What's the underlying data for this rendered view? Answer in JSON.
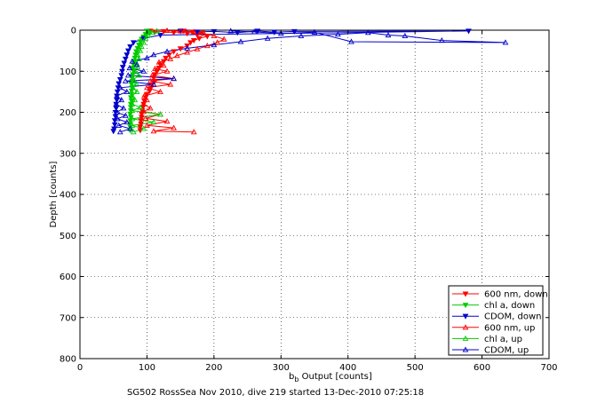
{
  "chart_data": {
    "type": "scatter",
    "xlabel_main": "b",
    "xlabel_sub": "b",
    "xlabel_rest": " Output [counts]",
    "ylabel": "Depth [counts]",
    "caption": "SG502 RossSea Nov 2010, dive 219 started 13-Dec-2010 07:25:18",
    "xlim": [
      0,
      700
    ],
    "ylim": [
      800,
      0
    ],
    "x_ticks": [
      0,
      100,
      200,
      300,
      400,
      500,
      600,
      700
    ],
    "y_ticks": [
      0,
      100,
      200,
      300,
      400,
      500,
      600,
      700,
      800
    ],
    "y_reversed": true,
    "grid": true,
    "legend_position": "bottom-right",
    "series": [
      {
        "name": "600 nm, down",
        "color": "#ff0000",
        "marker": "triangle-down",
        "lines": true,
        "points": [
          [
            105,
            2
          ],
          [
            112,
            4
          ],
          [
            125,
            3
          ],
          [
            140,
            6
          ],
          [
            155,
            2
          ],
          [
            160,
            8
          ],
          [
            168,
            5
          ],
          [
            175,
            12
          ],
          [
            182,
            7
          ],
          [
            190,
            15
          ],
          [
            178,
            20
          ],
          [
            170,
            25
          ],
          [
            165,
            30
          ],
          [
            160,
            38
          ],
          [
            150,
            45
          ],
          [
            140,
            52
          ],
          [
            133,
            60
          ],
          [
            128,
            68
          ],
          [
            125,
            76
          ],
          [
            120,
            84
          ],
          [
            118,
            92
          ],
          [
            115,
            100
          ],
          [
            112,
            108
          ],
          [
            110,
            116
          ],
          [
            112,
            124
          ],
          [
            108,
            132
          ],
          [
            106,
            140
          ],
          [
            104,
            148
          ],
          [
            100,
            156
          ],
          [
            98,
            164
          ],
          [
            96,
            172
          ],
          [
            95,
            180
          ],
          [
            94,
            188
          ],
          [
            93,
            196
          ],
          [
            92,
            204
          ],
          [
            92,
            212
          ],
          [
            91,
            220
          ],
          [
            91,
            228
          ],
          [
            90,
            236
          ],
          [
            90,
            244
          ]
        ]
      },
      {
        "name": "chl a, down",
        "color": "#00cc00",
        "marker": "triangle-down",
        "lines": true,
        "points": [
          [
            100,
            2
          ],
          [
            103,
            6
          ],
          [
            98,
            10
          ],
          [
            95,
            16
          ],
          [
            92,
            22
          ],
          [
            90,
            28
          ],
          [
            88,
            36
          ],
          [
            86,
            44
          ],
          [
            84,
            52
          ],
          [
            83,
            60
          ],
          [
            82,
            68
          ],
          [
            81,
            76
          ],
          [
            80,
            84
          ],
          [
            79,
            92
          ],
          [
            80,
            100
          ],
          [
            79,
            108
          ],
          [
            78,
            116
          ],
          [
            78,
            124
          ],
          [
            77,
            132
          ],
          [
            78,
            140
          ],
          [
            77,
            148
          ],
          [
            77,
            156
          ],
          [
            76,
            164
          ],
          [
            77,
            172
          ],
          [
            76,
            180
          ],
          [
            76,
            188
          ],
          [
            76,
            196
          ],
          [
            75,
            204
          ],
          [
            76,
            212
          ],
          [
            75,
            220
          ],
          [
            75,
            228
          ],
          [
            75,
            236
          ],
          [
            75,
            244
          ]
        ]
      },
      {
        "name": "CDOM, down",
        "color": "#0000cc",
        "marker": "triangle-down",
        "lines": true,
        "points": [
          [
            150,
            2
          ],
          [
            175,
            4
          ],
          [
            200,
            3
          ],
          [
            235,
            6
          ],
          [
            265,
            2
          ],
          [
            290,
            5
          ],
          [
            320,
            3
          ],
          [
            580,
            2
          ],
          [
            120,
            12
          ],
          [
            95,
            20
          ],
          [
            80,
            30
          ],
          [
            75,
            40
          ],
          [
            72,
            50
          ],
          [
            70,
            60
          ],
          [
            68,
            70
          ],
          [
            66,
            80
          ],
          [
            64,
            90
          ],
          [
            63,
            100
          ],
          [
            62,
            110
          ],
          [
            60,
            120
          ],
          [
            58,
            130
          ],
          [
            57,
            140
          ],
          [
            56,
            150
          ],
          [
            55,
            160
          ],
          [
            55,
            170
          ],
          [
            54,
            180
          ],
          [
            54,
            190
          ],
          [
            53,
            200
          ],
          [
            53,
            210
          ],
          [
            52,
            220
          ],
          [
            52,
            230
          ],
          [
            51,
            240
          ],
          [
            50,
            246
          ]
        ]
      },
      {
        "name": "600 nm, up",
        "color": "#ff0000",
        "marker": "triangle-up",
        "lines": true,
        "points": [
          [
            170,
            248
          ],
          [
            110,
            246
          ],
          [
            140,
            238
          ],
          [
            100,
            232
          ],
          [
            130,
            222
          ],
          [
            98,
            215
          ],
          [
            120,
            205
          ],
          [
            95,
            198
          ],
          [
            105,
            190
          ],
          [
            95,
            180
          ],
          [
            100,
            170
          ],
          [
            96,
            160
          ],
          [
            120,
            150
          ],
          [
            100,
            140
          ],
          [
            135,
            132
          ],
          [
            105,
            124
          ],
          [
            140,
            118
          ],
          [
            108,
            110
          ],
          [
            130,
            100
          ],
          [
            112,
            94
          ],
          [
            125,
            86
          ],
          [
            118,
            78
          ],
          [
            135,
            70
          ],
          [
            145,
            62
          ],
          [
            160,
            54
          ],
          [
            175,
            46
          ],
          [
            190,
            38
          ],
          [
            205,
            30
          ],
          [
            215,
            22
          ],
          [
            200,
            14
          ],
          [
            185,
            8
          ],
          [
            170,
            4
          ],
          [
            150,
            2
          ],
          [
            130,
            1
          ]
        ]
      },
      {
        "name": "chl a, up",
        "color": "#00cc00",
        "marker": "triangle-up",
        "lines": true,
        "points": [
          [
            80,
            248
          ],
          [
            95,
            240
          ],
          [
            78,
            232
          ],
          [
            110,
            224
          ],
          [
            78,
            216
          ],
          [
            120,
            205
          ],
          [
            78,
            196
          ],
          [
            90,
            188
          ],
          [
            78,
            180
          ],
          [
            82,
            170
          ],
          [
            78,
            160
          ],
          [
            85,
            150
          ],
          [
            79,
            140
          ],
          [
            84,
            130
          ],
          [
            80,
            120
          ],
          [
            88,
            110
          ],
          [
            82,
            100
          ],
          [
            86,
            90
          ],
          [
            84,
            80
          ],
          [
            88,
            70
          ],
          [
            86,
            60
          ],
          [
            90,
            50
          ],
          [
            92,
            40
          ],
          [
            95,
            30
          ],
          [
            98,
            20
          ],
          [
            102,
            12
          ],
          [
            108,
            6
          ],
          [
            115,
            2
          ]
        ]
      },
      {
        "name": "CDOM, up",
        "color": "#0000cc",
        "marker": "triangle-up",
        "lines": true,
        "points": [
          [
            60,
            248
          ],
          [
            75,
            240
          ],
          [
            58,
            232
          ],
          [
            70,
            224
          ],
          [
            56,
            216
          ],
          [
            68,
            208
          ],
          [
            55,
            200
          ],
          [
            65,
            190
          ],
          [
            54,
            180
          ],
          [
            62,
            170
          ],
          [
            55,
            160
          ],
          [
            70,
            150
          ],
          [
            60,
            140
          ],
          [
            110,
            132
          ],
          [
            68,
            124
          ],
          [
            140,
            118
          ],
          [
            72,
            110
          ],
          [
            95,
            100
          ],
          [
            74,
            92
          ],
          [
            85,
            84
          ],
          [
            78,
            76
          ],
          [
            100,
            68
          ],
          [
            110,
            60
          ],
          [
            130,
            52
          ],
          [
            160,
            44
          ],
          [
            200,
            36
          ],
          [
            240,
            28
          ],
          [
            280,
            20
          ],
          [
            330,
            14
          ],
          [
            385,
            10
          ],
          [
            430,
            6
          ],
          [
            460,
            12
          ],
          [
            485,
            14
          ],
          [
            540,
            25
          ],
          [
            635,
            30
          ],
          [
            405,
            28
          ],
          [
            350,
            5
          ],
          [
            300,
            8
          ],
          [
            260,
            4
          ],
          [
            225,
            2
          ]
        ]
      }
    ]
  }
}
